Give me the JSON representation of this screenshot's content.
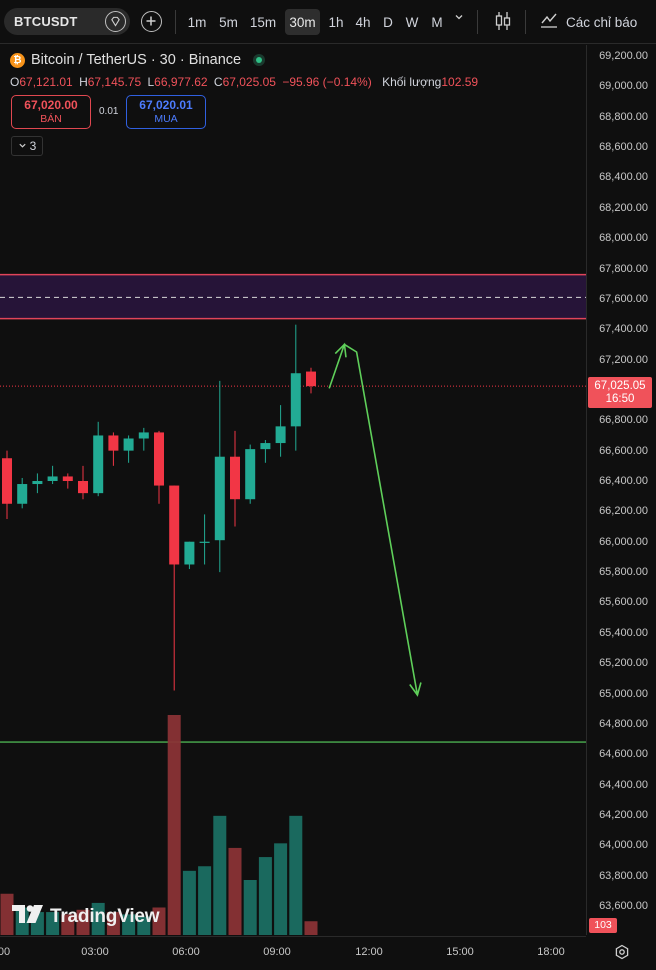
{
  "toolbar": {
    "symbol": "BTCUSDT",
    "timeframes": [
      "1m",
      "5m",
      "15m",
      "30m",
      "1h",
      "4h",
      "D",
      "W",
      "M"
    ],
    "active_timeframe": "30m",
    "alerts_label": "Các chỉ báo"
  },
  "legend": {
    "title": "Bitcoin / TetherUS · 30 · Binance",
    "ohlc": {
      "o_label": "O",
      "o": "67,121.01",
      "h_label": "H",
      "h": "67,145.75",
      "l_label": "L",
      "l": "66,977.62",
      "c_label": "C",
      "c": "67,025.05",
      "change": "−95.96 (−0.14%)",
      "volume_label": "Khối lượng",
      "volume": "102.59"
    },
    "sell": {
      "price": "67,020.00",
      "label": "BÁN"
    },
    "buy": {
      "price": "67,020.01",
      "label": "MUA"
    },
    "spread": "0.01",
    "collapse_count": "3"
  },
  "price_axis": {
    "ticks": [
      "69,200.00",
      "69,000.00",
      "68,800.00",
      "68,600.00",
      "68,400.00",
      "68,200.00",
      "68,000.00",
      "67,800.00",
      "67,600.00",
      "67,400.00",
      "67,200.00",
      "66,800.00",
      "66,600.00",
      "66,400.00",
      "66,200.00",
      "66,000.00",
      "65,800.00",
      "65,600.00",
      "65,400.00",
      "65,200.00",
      "65,000.00",
      "64,800.00",
      "64,600.00",
      "64,400.00",
      "64,200.00",
      "64,000.00",
      "63,800.00",
      "63,600.00"
    ],
    "last_price": "67,025.05",
    "countdown": "16:50",
    "volume_badge": "103"
  },
  "time_axis": {
    "ticks": [
      "00",
      "03:00",
      "06:00",
      "09:00",
      "12:00",
      "15:00",
      "18:00"
    ]
  },
  "branding": {
    "logo_text": "TradingView"
  },
  "colors": {
    "up": "#22ab94",
    "down": "#f23645",
    "zone_fill": "#2a1540",
    "zone_border": "#e0445a",
    "support_line": "#4caf50",
    "arrow": "#5fcf5a"
  },
  "chart_data": {
    "type": "candlestick",
    "interval": "30m",
    "ylim": [
      63500,
      69300
    ],
    "candles": [
      {
        "o": 66550,
        "h": 66600,
        "l": 66150,
        "c": 66250
      },
      {
        "o": 66250,
        "h": 66420,
        "l": 66220,
        "c": 66380
      },
      {
        "o": 66380,
        "h": 66450,
        "l": 66320,
        "c": 66400
      },
      {
        "o": 66400,
        "h": 66500,
        "l": 66380,
        "c": 66430
      },
      {
        "o": 66430,
        "h": 66450,
        "l": 66350,
        "c": 66400
      },
      {
        "o": 66400,
        "h": 66500,
        "l": 66280,
        "c": 66320
      },
      {
        "o": 66320,
        "h": 66790,
        "l": 66300,
        "c": 66700
      },
      {
        "o": 66700,
        "h": 66720,
        "l": 66500,
        "c": 66600
      },
      {
        "o": 66600,
        "h": 66700,
        "l": 66520,
        "c": 66680
      },
      {
        "o": 66680,
        "h": 66750,
        "l": 66600,
        "c": 66720
      },
      {
        "o": 66720,
        "h": 66730,
        "l": 66250,
        "c": 66370
      },
      {
        "o": 66370,
        "h": 66370,
        "l": 65020,
        "c": 65850
      },
      {
        "o": 65850,
        "h": 66000,
        "l": 65820,
        "c": 66000
      },
      {
        "o": 66000,
        "h": 66180,
        "l": 65850,
        "c": 66000
      },
      {
        "o": 66010,
        "h": 67060,
        "l": 65800,
        "c": 66560
      },
      {
        "o": 66560,
        "h": 66730,
        "l": 66100,
        "c": 66280
      },
      {
        "o": 66280,
        "h": 66640,
        "l": 66250,
        "c": 66610
      },
      {
        "o": 66610,
        "h": 66670,
        "l": 66520,
        "c": 66650
      },
      {
        "o": 66650,
        "h": 66900,
        "l": 66560,
        "c": 66760
      },
      {
        "o": 66760,
        "h": 67430,
        "l": 66600,
        "c": 67110
      },
      {
        "o": 67121.01,
        "h": 67145.75,
        "l": 66977.62,
        "c": 67025.05
      }
    ],
    "volume": [
      18,
      12,
      10,
      10,
      9,
      11,
      14,
      10,
      9,
      8,
      12,
      96,
      28,
      30,
      52,
      38,
      24,
      34,
      40,
      52,
      6
    ],
    "resistance_zone": [
      67470,
      67760
    ],
    "zone_midline": 67610,
    "support_line": 64680,
    "last_price_line": 67025.05,
    "projection": [
      {
        "bar": 21.2,
        "price": 67010
      },
      {
        "bar": 22.2,
        "price": 67300
      },
      {
        "bar": 23.0,
        "price": 67250
      },
      {
        "bar": 27.0,
        "price": 64990
      }
    ]
  }
}
